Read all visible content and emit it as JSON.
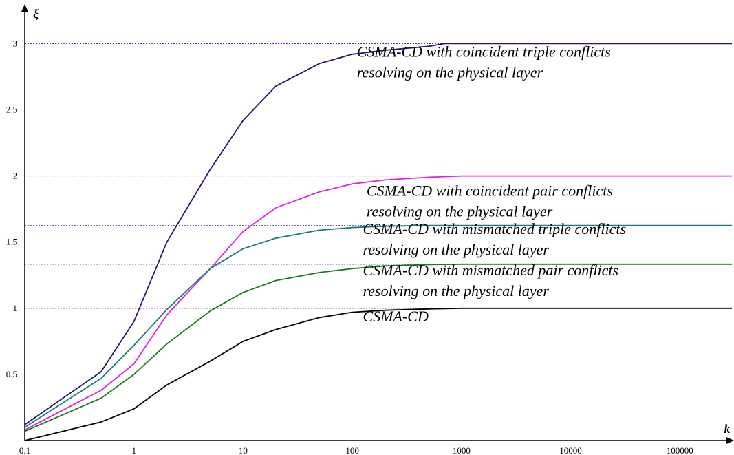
{
  "chart_data": {
    "type": "line",
    "xlabel": "k",
    "ylabel": "ξ",
    "xscale": "log",
    "xlim": [
      0.1,
      300000
    ],
    "ylim": [
      0,
      3.2
    ],
    "grid": false,
    "legend": "none",
    "xticks": [
      {
        "value": 0.1,
        "label": "0.1"
      },
      {
        "value": 1,
        "label": "1"
      },
      {
        "value": 10,
        "label": "10"
      },
      {
        "value": 100,
        "label": "100"
      },
      {
        "value": 1000,
        "label": "1000"
      },
      {
        "value": 10000,
        "label": "10000"
      },
      {
        "value": 100000,
        "label": "100000"
      }
    ],
    "yticks": [
      {
        "value": 0.5,
        "label": "0.5"
      },
      {
        "value": 1,
        "label": "1"
      },
      {
        "value": 1.5,
        "label": "1.5"
      },
      {
        "value": 2,
        "label": "2"
      },
      {
        "value": 2.5,
        "label": "2.5"
      },
      {
        "value": 3,
        "label": "3"
      }
    ],
    "reference_lines": [
      3,
      2,
      1.625,
      1.333,
      1
    ],
    "series": [
      {
        "color": "#1a1a6e",
        "x": [
          0.1,
          0.5,
          1,
          2,
          5,
          10,
          20,
          50,
          100,
          200,
          500,
          700,
          1000,
          300000
        ],
        "y": [
          0.12,
          0.52,
          0.9,
          1.5,
          2.05,
          2.42,
          2.68,
          2.85,
          2.92,
          2.95,
          2.98,
          3.0,
          3.0,
          3.0
        ]
      },
      {
        "color": "#e020e0",
        "x": [
          0.1,
          0.5,
          1,
          2,
          5,
          10,
          20,
          50,
          100,
          200,
          500,
          1000,
          300000
        ],
        "y": [
          0.08,
          0.38,
          0.58,
          0.95,
          1.3,
          1.58,
          1.76,
          1.88,
          1.94,
          1.97,
          1.99,
          2.0,
          2.0
        ]
      },
      {
        "color": "#1a7a7a",
        "x": [
          0.1,
          0.5,
          1,
          2,
          5,
          10,
          20,
          50,
          100,
          200,
          500,
          1000,
          300000
        ],
        "y": [
          0.1,
          0.47,
          0.72,
          0.99,
          1.3,
          1.45,
          1.53,
          1.59,
          1.61,
          1.62,
          1.625,
          1.625,
          1.625
        ]
      },
      {
        "color": "#1a7a1a",
        "x": [
          0.1,
          0.5,
          1,
          2,
          5,
          10,
          20,
          50,
          100,
          200,
          500,
          1000,
          300000
        ],
        "y": [
          0.07,
          0.32,
          0.5,
          0.73,
          0.98,
          1.12,
          1.21,
          1.27,
          1.3,
          1.32,
          1.33,
          1.333,
          1.333
        ]
      },
      {
        "color": "#000000",
        "x": [
          0.1,
          0.5,
          1,
          2,
          5,
          10,
          20,
          50,
          100,
          200,
          500,
          1000,
          300000
        ],
        "y": [
          0.0,
          0.14,
          0.24,
          0.42,
          0.6,
          0.75,
          0.84,
          0.93,
          0.97,
          0.985,
          0.995,
          1.0,
          1.0
        ]
      }
    ],
    "annotations": [
      {
        "lines": [
          "CSMA-CD with coincident triple conflicts",
          "resolving on the physical layer"
        ],
        "anchor_x": 110,
        "anchor_y": 2.9
      },
      {
        "lines": [
          "CSMA-CD with coincident pair conflicts",
          "resolving on the physical layer"
        ],
        "anchor_x": 135,
        "anchor_y": 1.85
      },
      {
        "lines": [
          "CSMA-CD with mismatched triple conflicts",
          "resolving on the physical layer"
        ],
        "anchor_x": 125,
        "anchor_y": 1.56
      },
      {
        "lines": [
          "CSMA-CD with mismatched pair conflicts",
          "resolving on the physical layer"
        ],
        "anchor_x": 125,
        "anchor_y": 1.25
      },
      {
        "lines": [
          "CSMA-CD"
        ],
        "anchor_x": 125,
        "anchor_y": 0.9
      }
    ]
  }
}
